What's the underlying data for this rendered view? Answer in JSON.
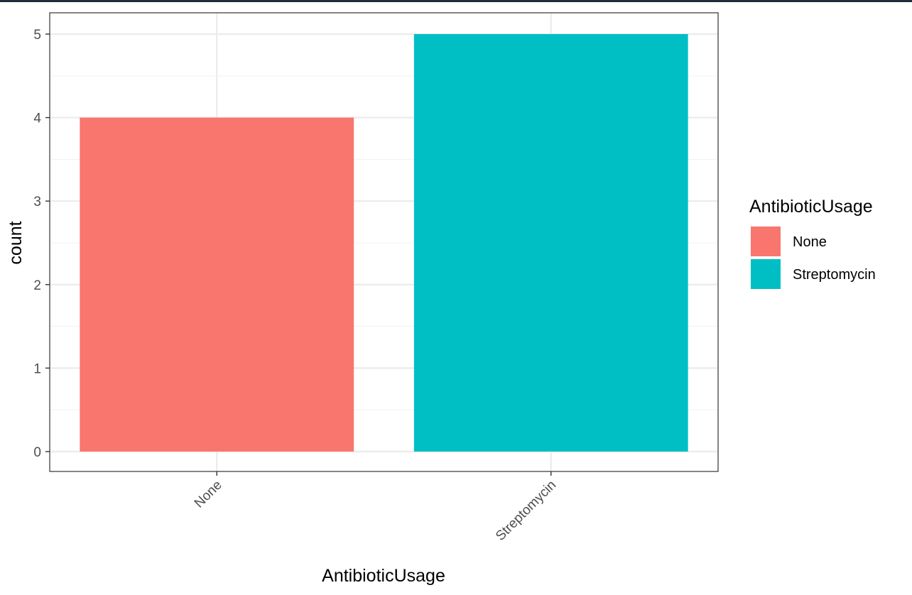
{
  "chart_data": {
    "type": "bar",
    "categories": [
      "None",
      "Streptomycin"
    ],
    "values": [
      4,
      5
    ],
    "colors": [
      "#F8766D",
      "#00BFC4"
    ],
    "xlabel": "AntibioticUsage",
    "ylabel": "count",
    "ylim": [
      0,
      5
    ],
    "yticks": [
      0,
      1,
      2,
      3,
      4,
      5
    ],
    "grid": true,
    "theme": "bw",
    "xtick_rotation": 45,
    "legend": {
      "title": "AntibioticUsage",
      "placement": "right",
      "entries": [
        {
          "label": "None",
          "color": "#F8766D"
        },
        {
          "label": "Streptomycin",
          "color": "#00BFC4"
        }
      ]
    }
  }
}
